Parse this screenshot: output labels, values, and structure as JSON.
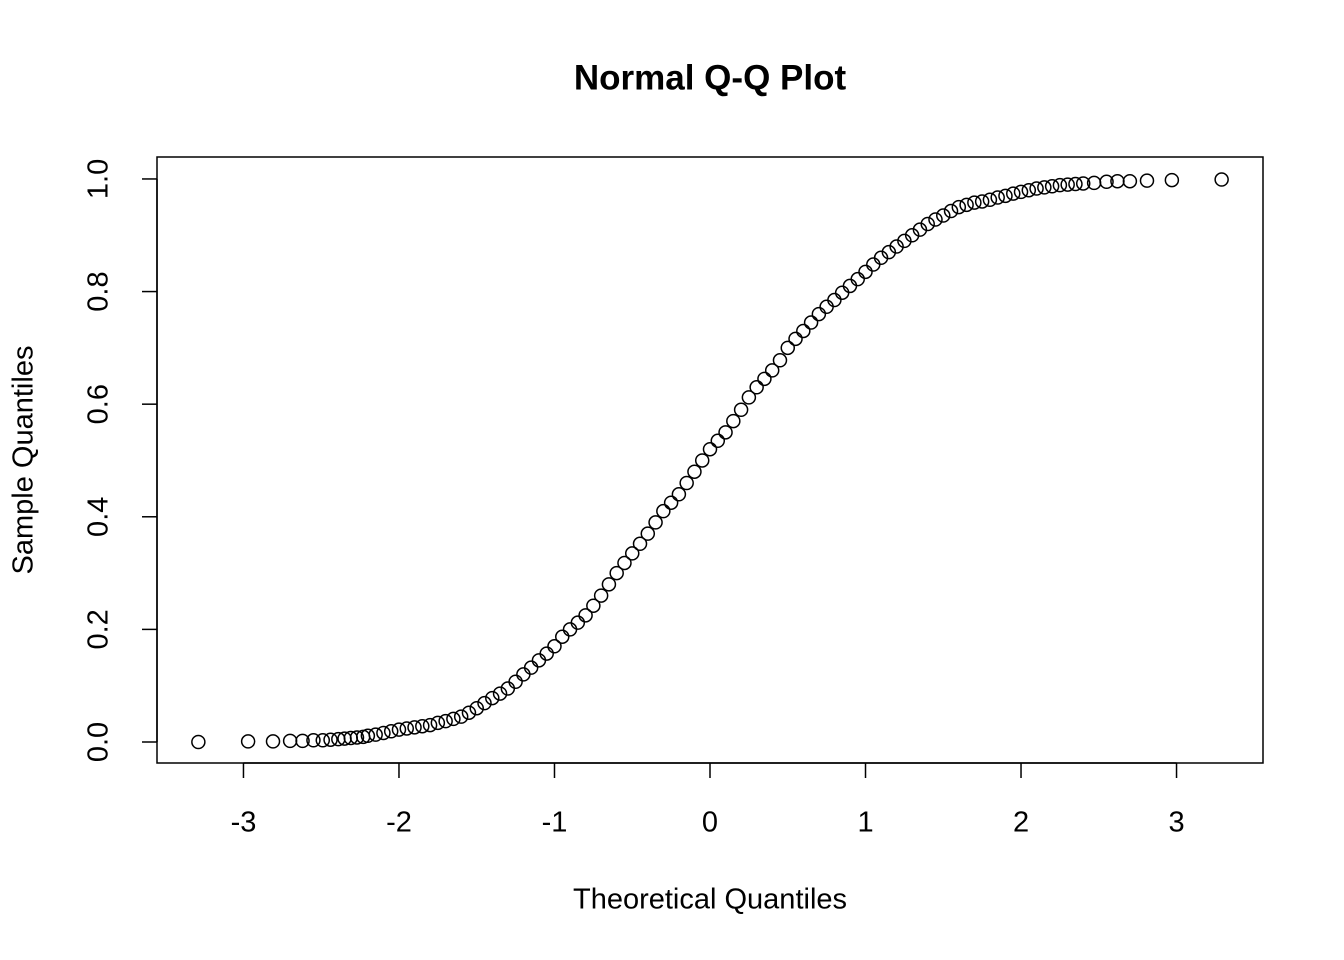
{
  "chart_data": {
    "type": "scatter",
    "title": "Normal Q-Q Plot",
    "x_label": "Theoretical Quantiles",
    "y_label": "Sample Quantiles",
    "color": "#000000",
    "x": [
      -3.29,
      -2.97,
      -2.81,
      -2.7,
      -2.62,
      -2.55,
      -2.49,
      -2.44,
      -2.39,
      -2.35,
      -2.31,
      -2.27,
      -2.23,
      -2.2,
      -2.15,
      -2.1,
      -2.05,
      -2.0,
      -1.95,
      -1.9,
      -1.85,
      -1.8,
      -1.75,
      -1.7,
      -1.65,
      -1.6,
      -1.55,
      -1.5,
      -1.45,
      -1.4,
      -1.35,
      -1.3,
      -1.25,
      -1.2,
      -1.15,
      -1.1,
      -1.05,
      -1.0,
      -0.95,
      -0.9,
      -0.85,
      -0.8,
      -0.75,
      -0.7,
      -0.65,
      -0.6,
      -0.55,
      -0.5,
      -0.45,
      -0.4,
      -0.35,
      -0.3,
      -0.25,
      -0.2,
      -0.15,
      -0.1,
      -0.05,
      0,
      0.05,
      0.1,
      0.15,
      0.2,
      0.25,
      0.3,
      0.35,
      0.4,
      0.45,
      0.5,
      0.55,
      0.6,
      0.65,
      0.7,
      0.75,
      0.8,
      0.85,
      0.9,
      0.95,
      1.0,
      1.05,
      1.1,
      1.15,
      1.2,
      1.25,
      1.3,
      1.35,
      1.4,
      1.45,
      1.5,
      1.55,
      1.6,
      1.65,
      1.7,
      1.75,
      1.8,
      1.85,
      1.9,
      1.95,
      2.0,
      2.05,
      2.1,
      2.15,
      2.2,
      2.25,
      2.3,
      2.35,
      2.4,
      2.47,
      2.55,
      2.62,
      2.7,
      2.81,
      2.97,
      3.29
    ],
    "y": [
      0,
      0.001,
      0.001,
      0.002,
      0.002,
      0.003,
      0.003,
      0.004,
      0.005,
      0.006,
      0.007,
      0.008,
      0.009,
      0.011,
      0.013,
      0.016,
      0.019,
      0.022,
      0.024,
      0.026,
      0.028,
      0.03,
      0.034,
      0.037,
      0.041,
      0.045,
      0.052,
      0.06,
      0.069,
      0.078,
      0.086,
      0.095,
      0.107,
      0.12,
      0.132,
      0.145,
      0.157,
      0.17,
      0.187,
      0.2,
      0.212,
      0.225,
      0.242,
      0.26,
      0.28,
      0.3,
      0.318,
      0.335,
      0.352,
      0.37,
      0.39,
      0.41,
      0.425,
      0.44,
      0.46,
      0.48,
      0.5,
      0.52,
      0.535,
      0.55,
      0.57,
      0.59,
      0.612,
      0.63,
      0.645,
      0.66,
      0.678,
      0.7,
      0.716,
      0.73,
      0.745,
      0.76,
      0.773,
      0.785,
      0.798,
      0.81,
      0.822,
      0.835,
      0.848,
      0.86,
      0.87,
      0.88,
      0.89,
      0.9,
      0.91,
      0.92,
      0.928,
      0.935,
      0.943,
      0.95,
      0.954,
      0.958,
      0.96,
      0.963,
      0.967,
      0.97,
      0.974,
      0.977,
      0.98,
      0.983,
      0.985,
      0.987,
      0.989,
      0.99,
      0.991,
      0.992,
      0.993,
      0.995,
      0.996,
      0.996,
      0.997,
      0.998,
      0.999
    ],
    "xlim": [
      -3.556,
      3.556
    ],
    "ylim": [
      -0.0373,
      1.039
    ],
    "xticks": [
      -3,
      -2,
      -1,
      0,
      1,
      2,
      3
    ],
    "yticks": [
      {
        "value": 0,
        "label": "0.0"
      },
      0.2,
      0.4,
      0.6,
      0.8,
      {
        "value": 1,
        "label": "1.0"
      }
    ]
  }
}
